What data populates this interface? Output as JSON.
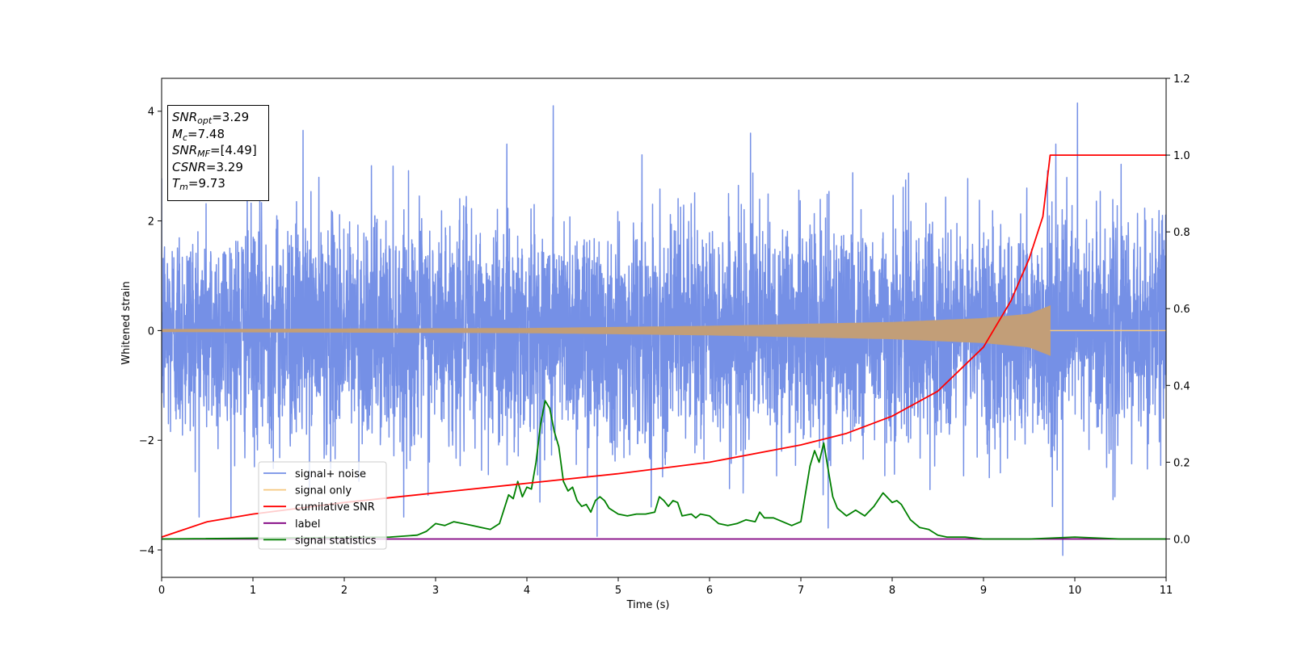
{
  "chart_data": {
    "type": "line",
    "xlabel": "Time (s)",
    "ylabel": "Whitened strain",
    "xlim": [
      0,
      11
    ],
    "ylim": [
      -4.5,
      4.6
    ],
    "y2lim": [
      -0.1,
      1.2
    ],
    "xticks": [
      "0",
      "1",
      "2",
      "3",
      "4",
      "5",
      "6",
      "7",
      "8",
      "9",
      "10",
      "11"
    ],
    "yticks": [
      "−4",
      "−2",
      "0",
      "2",
      "4"
    ],
    "y2ticks": [
      "0.0",
      "0.2",
      "0.4",
      "0.6",
      "0.8",
      "1.0",
      "1.2"
    ],
    "grid": false,
    "legend_position": "lower-left",
    "legend": [
      "signal+ noise",
      "signal only",
      "cumilative SNR",
      "label",
      "signal statistics"
    ],
    "colors": {
      "signal_noise": "#7590e6",
      "signal_only": "#f5c77e",
      "signal_only_overlap": "#c29e78",
      "cumulative_snr": "#ff0000",
      "label": "#800080",
      "signal_statistics": "#008000"
    },
    "annotation": {
      "snr_opt": {
        "sym": "SNR",
        "sub": "opt",
        "value": "=3.29"
      },
      "mc": {
        "sym": "M",
        "sub": "c",
        "value": "=7.48"
      },
      "snr_mf": {
        "sym": "SNR",
        "sub": "MF",
        "value": "=[4.49]"
      },
      "csnr": {
        "sym": "CSNR",
        "sub": "",
        "value": "=3.29"
      },
      "tm": {
        "sym": "T",
        "sub": "m",
        "value": "=9.73"
      }
    },
    "series": [
      {
        "name": "signal+ noise",
        "axis": "left",
        "description_level": "noise std approx 1.0",
        "x_range": [
          0,
          11
        ],
        "peaks": [
          [
            4.29,
            4.1
          ],
          [
            10.03,
            4.15
          ],
          [
            1.55,
            3.65
          ],
          [
            6.45,
            3.6
          ],
          [
            9.87,
            -4.1
          ],
          [
            7.3,
            -3.6
          ],
          [
            4.77,
            -3.75
          ]
        ]
      },
      {
        "name": "signal only",
        "axis": "left",
        "x_range": [
          0,
          9.73
        ],
        "amplitude_points": [
          [
            0,
            0.02
          ],
          [
            4,
            0.04
          ],
          [
            6,
            0.08
          ],
          [
            8,
            0.15
          ],
          [
            9,
            0.22
          ],
          [
            9.5,
            0.3
          ],
          [
            9.73,
            0.45
          ]
        ]
      },
      {
        "name": "cumilative SNR",
        "axis": "right",
        "x": [
          0,
          0.5,
          1,
          2,
          3,
          4,
          5,
          6,
          7,
          7.5,
          8,
          8.5,
          9,
          9.3,
          9.5,
          9.65,
          9.73,
          11
        ],
        "y": [
          0.005,
          0.045,
          0.065,
          0.095,
          0.12,
          0.145,
          0.17,
          0.2,
          0.245,
          0.275,
          0.32,
          0.385,
          0.5,
          0.62,
          0.73,
          0.84,
          1.0,
          1.0
        ]
      },
      {
        "name": "label",
        "axis": "right",
        "x": [
          0,
          11
        ],
        "y": [
          0,
          0
        ]
      },
      {
        "name": "signal statistics",
        "axis": "right",
        "x": [
          0,
          2.5,
          2.8,
          2.9,
          3.0,
          3.1,
          3.2,
          3.3,
          3.4,
          3.5,
          3.6,
          3.7,
          3.8,
          3.85,
          3.9,
          3.95,
          4.0,
          4.05,
          4.1,
          4.15,
          4.2,
          4.25,
          4.3,
          4.35,
          4.4,
          4.45,
          4.5,
          4.55,
          4.6,
          4.65,
          4.7,
          4.75,
          4.8,
          4.85,
          4.9,
          5.0,
          5.1,
          5.2,
          5.3,
          5.4,
          5.45,
          5.5,
          5.55,
          5.6,
          5.65,
          5.7,
          5.8,
          5.85,
          5.9,
          6.0,
          6.1,
          6.2,
          6.3,
          6.4,
          6.5,
          6.55,
          6.6,
          6.7,
          6.8,
          6.9,
          7.0,
          7.1,
          7.15,
          7.2,
          7.25,
          7.3,
          7.35,
          7.4,
          7.5,
          7.6,
          7.7,
          7.8,
          7.9,
          8.0,
          8.05,
          8.1,
          8.2,
          8.3,
          8.4,
          8.5,
          8.6,
          8.8,
          9.0,
          9.5,
          10.0,
          10.5,
          11.0
        ],
        "y": [
          0.0,
          0.005,
          0.01,
          0.02,
          0.04,
          0.035,
          0.045,
          0.04,
          0.035,
          0.03,
          0.025,
          0.04,
          0.115,
          0.105,
          0.15,
          0.11,
          0.135,
          0.13,
          0.2,
          0.3,
          0.36,
          0.34,
          0.28,
          0.24,
          0.15,
          0.125,
          0.135,
          0.1,
          0.085,
          0.09,
          0.07,
          0.1,
          0.11,
          0.1,
          0.08,
          0.065,
          0.06,
          0.065,
          0.065,
          0.07,
          0.11,
          0.1,
          0.085,
          0.1,
          0.095,
          0.06,
          0.065,
          0.055,
          0.065,
          0.06,
          0.04,
          0.035,
          0.04,
          0.05,
          0.045,
          0.07,
          0.055,
          0.055,
          0.045,
          0.035,
          0.045,
          0.19,
          0.23,
          0.2,
          0.25,
          0.18,
          0.11,
          0.08,
          0.06,
          0.075,
          0.06,
          0.085,
          0.12,
          0.095,
          0.1,
          0.09,
          0.05,
          0.03,
          0.025,
          0.01,
          0.005,
          0.005,
          0.0,
          0.0,
          0.005,
          0.0,
          0.0
        ]
      }
    ]
  }
}
